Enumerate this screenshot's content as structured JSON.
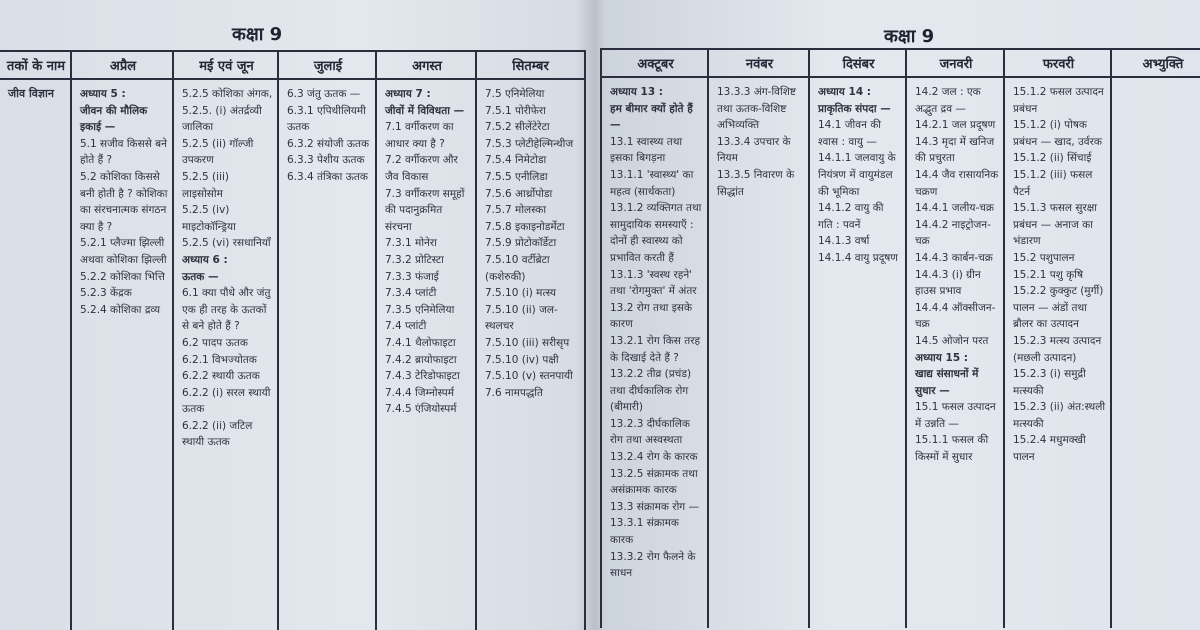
{
  "left_page": {
    "title": "कक्षा 9",
    "columns": [
      {
        "header": "तकों के नाम",
        "items": [
          {
            "t": "जीव विज्ञान",
            "b": true
          }
        ]
      },
      {
        "header": "अप्रैल",
        "items": [
          {
            "t": "अध्याय 5 :",
            "b": true
          },
          {
            "t": "जीवन की मौलिक इकाई —",
            "b": true
          },
          {
            "t": "5.1 सजीव किससे बने होते हैं ?"
          },
          {
            "t": "5.2 कोशिका किससे बनी होती है ? कोशिका का संरचनात्मक संगठन क्या है ?"
          },
          {
            "t": "5.2.1 प्लैज्मा झिल्ली अथवा कोशिका झिल्ली"
          },
          {
            "t": "5.2.2 कोशिका भित्ति"
          },
          {
            "t": "5.2.3 केंद्रक"
          },
          {
            "t": "5.2.4 कोशिका द्रव्य"
          }
        ]
      },
      {
        "header": "मई एवं जून",
        "items": [
          {
            "t": "5.2.5 कोशिका अंगक,"
          },
          {
            "t": "5.2.5. (i) अंतर्द्रव्यी जालिका"
          },
          {
            "t": "5.2.5 (ii) गॉल्जी उपकरण"
          },
          {
            "t": "5.2.5 (iii) लाइसोसोम"
          },
          {
            "t": "5.2.5 (iv) माइटोकॉन्ड्रिया"
          },
          {
            "t": "5.2.5 (vi) रसधानियाँ"
          },
          {
            "t": "अध्याय 6 :",
            "b": true
          },
          {
            "t": "ऊतक —",
            "b": true
          },
          {
            "t": "6.1 क्या पौधे और जंतु एक ही तरह के ऊतकों से बने होते हैं ?"
          },
          {
            "t": "6.2 पादप ऊतक"
          },
          {
            "t": "6.2.1 विभज्योतक"
          },
          {
            "t": "6.2.2 स्थायी ऊतक"
          },
          {
            "t": "6.2.2 (i) सरल स्थायी ऊतक"
          },
          {
            "t": "6.2.2 (ii) जटिल स्थायी ऊतक"
          }
        ]
      },
      {
        "header": "जुलाई",
        "items": [
          {
            "t": "6.3 जंतु ऊतक —"
          },
          {
            "t": "6.3.1 एपिथीलियमी ऊतक"
          },
          {
            "t": "6.3.2 संयोजी ऊतक"
          },
          {
            "t": "6.3.3 पेशीय ऊतक"
          },
          {
            "t": "6.3.4 तंत्रिका ऊतक"
          }
        ]
      },
      {
        "header": "अगस्त",
        "items": [
          {
            "t": "अध्याय 7 :",
            "b": true
          },
          {
            "t": "जीवों में विविधता —",
            "b": true
          },
          {
            "t": "7.1 वर्गीकरण का आधार क्या है ?"
          },
          {
            "t": "7.2 वर्गीकरण और जैव विकास"
          },
          {
            "t": "7.3 वर्गीकरण समूहों की पदानुक्रमित संरचना"
          },
          {
            "t": "7.3.1 मोनेरा"
          },
          {
            "t": "7.3.2 प्रोटिस्टा"
          },
          {
            "t": "7.3.3 फंजाई"
          },
          {
            "t": "7.3.4 प्लांटी"
          },
          {
            "t": "7.3.5 एनिमेलिया"
          },
          {
            "t": "7.4 प्लांटी"
          },
          {
            "t": "7.4.1 थैलोफाइटा"
          },
          {
            "t": "7.4.2 ब्रायोफाइटा"
          },
          {
            "t": "7.4.3 टेरिडोफाइटा"
          },
          {
            "t": "7.4.4 जिम्नोस्पर्म"
          },
          {
            "t": "7.4.5 एंजियोस्पर्म"
          }
        ]
      },
      {
        "header": "सितम्बर",
        "items": [
          {
            "t": "7.5 एनिमेलिया"
          },
          {
            "t": "7.5.1 पोरीफेरा"
          },
          {
            "t": "7.5.2 सीलेंटेरेटा"
          },
          {
            "t": "7.5.3 प्लेटीहेल्मिन्थीज"
          },
          {
            "t": "7.5.4 निमेटोडा"
          },
          {
            "t": "7.5.5 एनीलिडा"
          },
          {
            "t": "7.5.6 आर्थ्रोपोडा"
          },
          {
            "t": "7.5.7 मोलस्का"
          },
          {
            "t": "7.5.8 इकाइनोडर्मेटा"
          },
          {
            "t": "7.5.9 प्रोटोकॉर्डेटा"
          },
          {
            "t": "7.5.10 वर्टीब्रेटा (कशेरुकी)"
          },
          {
            "t": "7.5.10 (i) मत्स्य"
          },
          {
            "t": "7.5.10 (ii) जल-स्थलचर"
          },
          {
            "t": "7.5.10 (iii) सरीसृप"
          },
          {
            "t": "7.5.10 (iv) पक्षी"
          },
          {
            "t": "7.5.10 (v) स्तनपायी"
          },
          {
            "t": "7.6 नामपद्धति"
          }
        ]
      }
    ]
  },
  "right_page": {
    "title": "कक्षा 9",
    "columns": [
      {
        "header": "अक्टूबर",
        "items": [
          {
            "t": "अध्याय 13 :",
            "b": true
          },
          {
            "t": "हम बीमार क्यों होते हैं —",
            "b": true
          },
          {
            "t": "13.1 स्वास्थ्य तथा इसका बिगड़ना"
          },
          {
            "t": "13.1.1 'स्वास्थ्य' का महत्व (सार्थकता)"
          },
          {
            "t": "13.1.2 व्यक्तिगत तथा सामुदायिक समस्याएँ : दोनों ही स्वास्थ्य को प्रभावित करती हैं"
          },
          {
            "t": "13.1.3 'स्वस्थ रहने' तथा 'रोगमुक्त' में अंतर"
          },
          {
            "t": "13.2 रोग तथा इसके कारण"
          },
          {
            "t": "13.2.1 रोग किस तरह के दिखाई देते हैं ?"
          },
          {
            "t": "13.2.2 तीव्र (प्रचंड) तथा दीर्घकालिक रोग (बीमारी)"
          },
          {
            "t": "13.2.3 दीर्घकालिक रोग तथा अस्वस्थता"
          },
          {
            "t": "13.2.4 रोग के कारक"
          },
          {
            "t": "13.2.5 संक्रामक तथा असंक्रामक कारक"
          },
          {
            "t": "13.3 संक्रामक रोग —"
          },
          {
            "t": "13.3.1 संक्रामक कारक"
          },
          {
            "t": "13.3.2 रोग फैलने के साधन"
          }
        ]
      },
      {
        "header": "नवंबर",
        "items": [
          {
            "t": "13.3.3 अंग-विशिष्ट तथा ऊतक-विशिष्ट अभिव्यक्ति"
          },
          {
            "t": "13.3.4 उपचार के नियम"
          },
          {
            "t": "13.3.5 निवारण के सिद्धांत"
          }
        ]
      },
      {
        "header": "दिसंबर",
        "items": [
          {
            "t": "अध्याय 14 :",
            "b": true
          },
          {
            "t": "प्राकृतिक संपदा —",
            "b": true
          },
          {
            "t": "14.1 जीवन की श्वास : वायु —"
          },
          {
            "t": "14.1.1 जलवायु के नियंत्रण में वायुमंडल की भूमिका"
          },
          {
            "t": "14.1.2 वायु की गति : पवनें"
          },
          {
            "t": "14.1.3 वर्षा"
          },
          {
            "t": "14.1.4 वायु प्रदूषण"
          }
        ]
      },
      {
        "header": "जनवरी",
        "items": [
          {
            "t": "14.2 जल : एक अद्भुत द्रव —"
          },
          {
            "t": "14.2.1 जल प्रदूषण"
          },
          {
            "t": "14.3 मृदा में खनिज की प्रचुरता"
          },
          {
            "t": "14.4 जैव रासायनिक चक्रण"
          },
          {
            "t": "14.4.1 जलीय-चक्र"
          },
          {
            "t": "14.4.2 नाइट्रोजन-चक्र"
          },
          {
            "t": "14.4.3 कार्बन-चक्र"
          },
          {
            "t": "14.4.3 (i) ग्रीन हाउस प्रभाव"
          },
          {
            "t": "14.4.4 ऑक्सीजन-चक्र"
          },
          {
            "t": "14.5 ओजोन परत"
          },
          {
            "t": "अध्याय 15 :",
            "b": true
          },
          {
            "t": "खाद्य संसाधनों में सुधार —",
            "b": true
          },
          {
            "t": "15.1 फसल उत्पादन में उन्नति —"
          },
          {
            "t": "15.1.1 फसल की किस्मों में सुधार"
          }
        ]
      },
      {
        "header": "फरवरी",
        "items": [
          {
            "t": "15.1.2 फसल उत्पादन प्रबंधन"
          },
          {
            "t": "15.1.2 (i) पोषक प्रबंधन — खाद, उर्वरक"
          },
          {
            "t": "15.1.2 (ii) सिंचाई"
          },
          {
            "t": "15.1.2 (iii) फसल पैटर्न"
          },
          {
            "t": "15.1.3 फसल सुरक्षा प्रबंधन — अनाज का भंडारण"
          },
          {
            "t": "15.2 पशुपालन"
          },
          {
            "t": "15.2.1 पशु कृषि"
          },
          {
            "t": "15.2.2 कुक्कुट (मुर्गी) पालन — अंडों तथा ब्रौलर का उत्पादन"
          },
          {
            "t": "15.2.3 मत्स्य उत्पादन (मछली उत्पादन)"
          },
          {
            "t": "15.2.3 (i) समुद्री मत्स्यकी"
          },
          {
            "t": "15.2.3 (ii) अंत:स्थली मत्स्यकी"
          },
          {
            "t": "15.2.4 मधुमक्खी पालन"
          }
        ]
      },
      {
        "header": "अभ्युक्ति",
        "items": []
      }
    ]
  }
}
